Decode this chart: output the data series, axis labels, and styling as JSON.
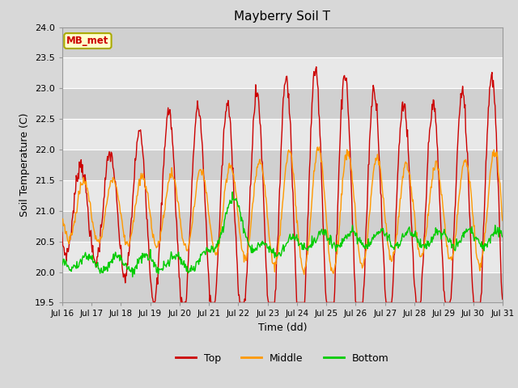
{
  "title": "Mayberry Soil T",
  "xlabel": "Time (dd)",
  "ylabel": "Soil Temperature (C)",
  "ylim": [
    19.5,
    24.0
  ],
  "yticks": [
    19.5,
    20.0,
    20.5,
    21.0,
    21.5,
    22.0,
    22.5,
    23.0,
    23.5,
    24.0
  ],
  "xtick_labels": [
    "Jul 16",
    "Jul 17",
    "Jul 18",
    "Jul 19",
    "Jul 20",
    "Jul 21",
    "Jul 22",
    "Jul 23",
    "Jul 24",
    "Jul 25",
    "Jul 26",
    "Jul 27",
    "Jul 28",
    "Jul 29",
    "Jul 30",
    "Jul 31"
  ],
  "annotation_text": "MB_met",
  "annotation_color": "#cc0000",
  "annotation_bg": "#ffffcc",
  "annotation_border": "#aaaa00",
  "top_color": "#cc0000",
  "middle_color": "#ff9900",
  "bottom_color": "#00cc00",
  "fig_bg": "#d8d8d8",
  "band_light": "#e8e8e8",
  "band_dark": "#d0d0d0",
  "grid_color": "#ffffff",
  "legend_entries": [
    "Top",
    "Middle",
    "Bottom"
  ]
}
